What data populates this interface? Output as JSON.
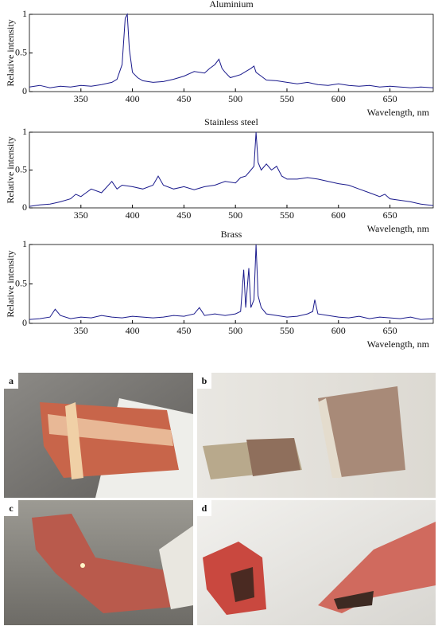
{
  "chart_data": [
    {
      "type": "line",
      "title": "Aluminium",
      "x_label": "Wavelength, nm",
      "y_label": "Relative intensity",
      "color": "#1a1a8c",
      "x": [
        300,
        310,
        320,
        330,
        340,
        350,
        360,
        370,
        380,
        385,
        390,
        393,
        395,
        397,
        400,
        405,
        410,
        420,
        430,
        440,
        450,
        460,
        470,
        475,
        480,
        484,
        487,
        490,
        495,
        500,
        505,
        510,
        515,
        518,
        520,
        525,
        530,
        540,
        550,
        560,
        570,
        580,
        590,
        600,
        610,
        620,
        630,
        640,
        650,
        660,
        670,
        680,
        692
      ],
      "values": [
        0.06,
        0.08,
        0.05,
        0.07,
        0.06,
        0.08,
        0.07,
        0.09,
        0.12,
        0.16,
        0.35,
        0.95,
        1.0,
        0.55,
        0.25,
        0.18,
        0.14,
        0.12,
        0.13,
        0.16,
        0.2,
        0.26,
        0.24,
        0.3,
        0.35,
        0.42,
        0.3,
        0.25,
        0.18,
        0.2,
        0.22,
        0.26,
        0.3,
        0.33,
        0.25,
        0.2,
        0.15,
        0.14,
        0.12,
        0.1,
        0.12,
        0.09,
        0.08,
        0.1,
        0.08,
        0.07,
        0.08,
        0.06,
        0.07,
        0.06,
        0.05,
        0.06,
        0.05
      ],
      "xlim": [
        300,
        692
      ],
      "xticks": [
        350,
        400,
        450,
        500,
        550,
        600,
        650
      ],
      "ylim": [
        0,
        1
      ],
      "yticks": [
        0,
        0.5,
        1
      ]
    },
    {
      "type": "line",
      "title": "Stainless steel",
      "x_label": "Wavelength, nm",
      "y_label": "Relative intensity",
      "color": "#1a1a8c",
      "x": [
        300,
        310,
        320,
        330,
        340,
        345,
        350,
        355,
        360,
        370,
        380,
        385,
        390,
        400,
        410,
        420,
        425,
        430,
        440,
        450,
        460,
        470,
        480,
        490,
        500,
        505,
        510,
        515,
        518,
        520,
        522,
        525,
        530,
        535,
        540,
        545,
        550,
        560,
        570,
        580,
        590,
        600,
        610,
        620,
        630,
        640,
        645,
        650,
        660,
        670,
        680,
        692
      ],
      "values": [
        0.02,
        0.04,
        0.05,
        0.08,
        0.12,
        0.18,
        0.15,
        0.2,
        0.25,
        0.2,
        0.35,
        0.25,
        0.3,
        0.28,
        0.25,
        0.3,
        0.42,
        0.3,
        0.25,
        0.28,
        0.24,
        0.28,
        0.3,
        0.35,
        0.33,
        0.4,
        0.42,
        0.5,
        0.55,
        1.0,
        0.6,
        0.5,
        0.58,
        0.5,
        0.55,
        0.42,
        0.38,
        0.38,
        0.4,
        0.38,
        0.35,
        0.32,
        0.3,
        0.25,
        0.2,
        0.15,
        0.18,
        0.12,
        0.1,
        0.08,
        0.05,
        0.03
      ],
      "xlim": [
        300,
        692
      ],
      "xticks": [
        350,
        400,
        450,
        500,
        550,
        600,
        650
      ],
      "ylim": [
        0,
        1
      ],
      "yticks": [
        0,
        0.5,
        1
      ]
    },
    {
      "type": "line",
      "title": "Brass",
      "x_label": "Wavelength, nm",
      "y_label": "Relative intensity",
      "color": "#1a1a8c",
      "x": [
        300,
        310,
        320,
        325,
        330,
        340,
        350,
        360,
        370,
        380,
        390,
        400,
        410,
        420,
        430,
        440,
        450,
        460,
        465,
        470,
        480,
        490,
        500,
        505,
        508,
        510,
        513,
        515,
        518,
        520,
        522,
        525,
        530,
        540,
        550,
        560,
        570,
        575,
        577,
        580,
        590,
        600,
        610,
        620,
        630,
        640,
        650,
        660,
        670,
        680,
        692
      ],
      "values": [
        0.05,
        0.06,
        0.08,
        0.18,
        0.1,
        0.06,
        0.08,
        0.07,
        0.1,
        0.08,
        0.07,
        0.09,
        0.08,
        0.07,
        0.08,
        0.1,
        0.09,
        0.12,
        0.2,
        0.1,
        0.12,
        0.1,
        0.12,
        0.15,
        0.68,
        0.2,
        0.7,
        0.2,
        0.3,
        1.0,
        0.35,
        0.2,
        0.12,
        0.1,
        0.08,
        0.09,
        0.12,
        0.15,
        0.3,
        0.12,
        0.1,
        0.08,
        0.07,
        0.09,
        0.06,
        0.08,
        0.07,
        0.06,
        0.08,
        0.05,
        0.06
      ],
      "xlim": [
        300,
        692
      ],
      "xticks": [
        350,
        400,
        450,
        500,
        550,
        600,
        650
      ],
      "ylim": [
        0,
        1
      ],
      "yticks": [
        0,
        0.5,
        1
      ]
    }
  ],
  "panels": [
    {
      "label": "a"
    },
    {
      "label": "b"
    },
    {
      "label": "c"
    },
    {
      "label": "d"
    }
  ]
}
